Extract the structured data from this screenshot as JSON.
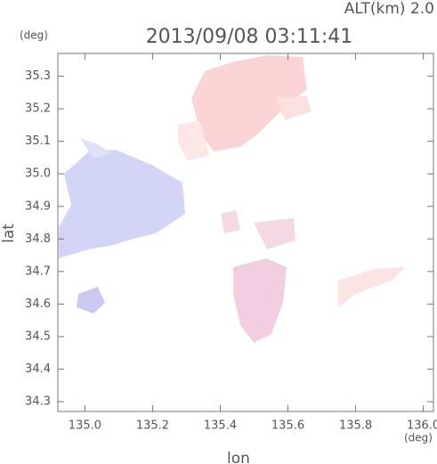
{
  "chart_data": {
    "type": "map",
    "title": "2013/09/08 03:11:41",
    "subtitle": "ALT(km) 2.0",
    "y_unit": "(deg)",
    "x_unit": "(deg)",
    "xlabel": "lon",
    "ylabel": "lat",
    "xlim": [
      134.92,
      136.03
    ],
    "ylim": [
      34.27,
      35.37
    ],
    "xticks": [
      {
        "value": 135.0,
        "label": "135.0"
      },
      135.2,
      135.4,
      135.6,
      135.8,
      {
        "value": 136.0,
        "label": "136.0"
      }
    ],
    "yticks": [
      {
        "value": 34.3,
        "label": "34.3"
      },
      34.4,
      34.5,
      34.6,
      34.7,
      34.8,
      34.9,
      {
        "value": 35.0,
        "label": "35.0"
      },
      35.1,
      35.2,
      35.3
    ]
  }
}
